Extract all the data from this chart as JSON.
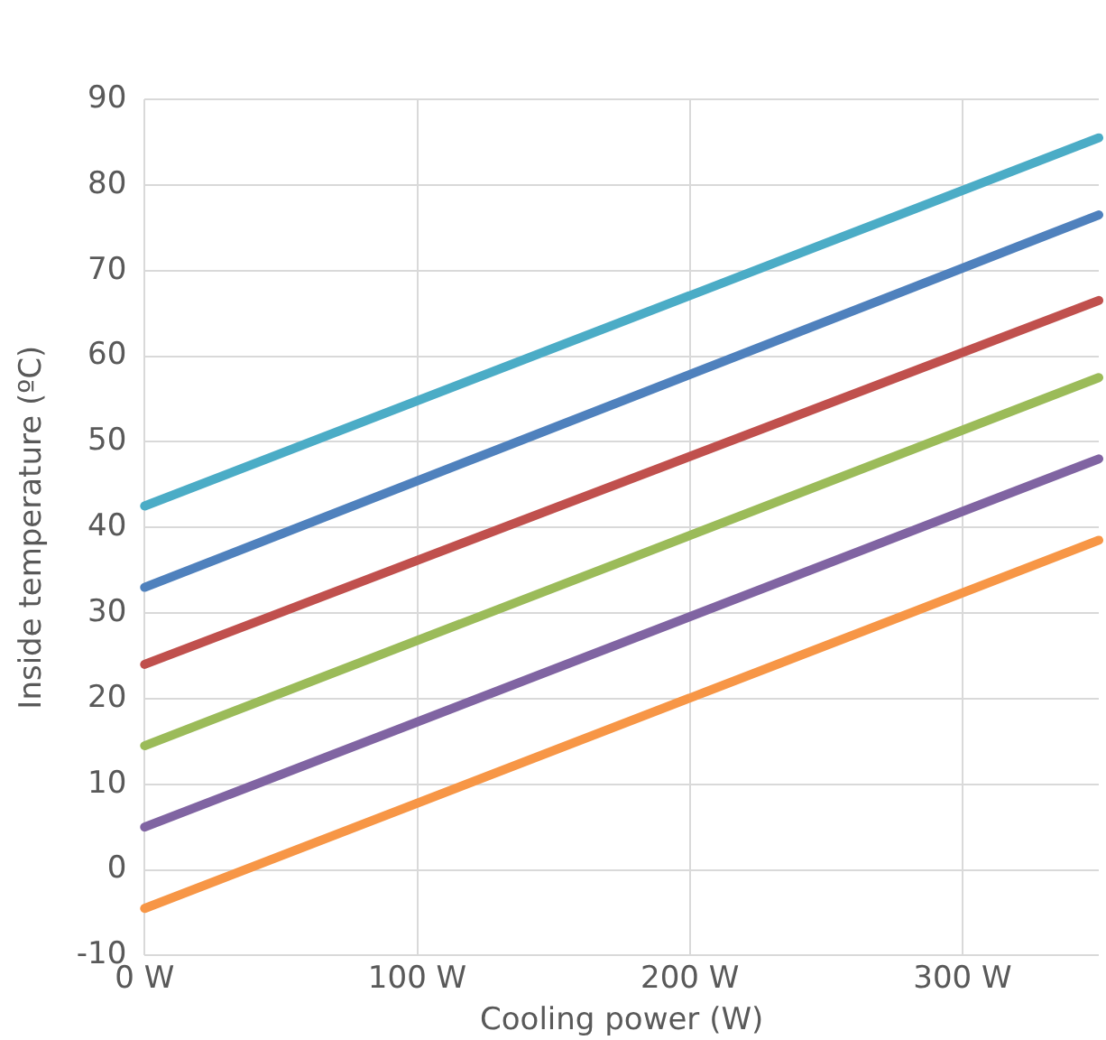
{
  "chart_data": {
    "type": "line",
    "xlabel": "Cooling power (W)",
    "ylabel": "Inside temperature (ºC)",
    "x": [
      0,
      350
    ],
    "xlim": [
      0,
      350
    ],
    "xticks": [
      {
        "value": 0,
        "label": "0 W"
      },
      {
        "value": 100,
        "label": "100 W"
      },
      {
        "value": 200,
        "label": "200 W"
      },
      {
        "value": 300,
        "label": "300 W"
      }
    ],
    "ylim": [
      -10,
      90
    ],
    "yticks": [
      -10,
      0,
      10,
      20,
      30,
      40,
      50,
      60,
      70,
      80,
      90
    ],
    "grid": true,
    "legend": false,
    "marker": "none",
    "line_style": "solid",
    "series": [
      {
        "color": "#4bacc6",
        "values": [
          42.5,
          85.5
        ]
      },
      {
        "color": "#4f81bd",
        "values": [
          33,
          76.5
        ]
      },
      {
        "color": "#c0504d",
        "values": [
          24,
          66.5
        ]
      },
      {
        "color": "#9bbb59",
        "values": [
          14.5,
          57.5
        ]
      },
      {
        "color": "#8064a2",
        "values": [
          5,
          48
        ]
      },
      {
        "color": "#f79646",
        "values": [
          -4.5,
          38.5
        ]
      }
    ]
  }
}
